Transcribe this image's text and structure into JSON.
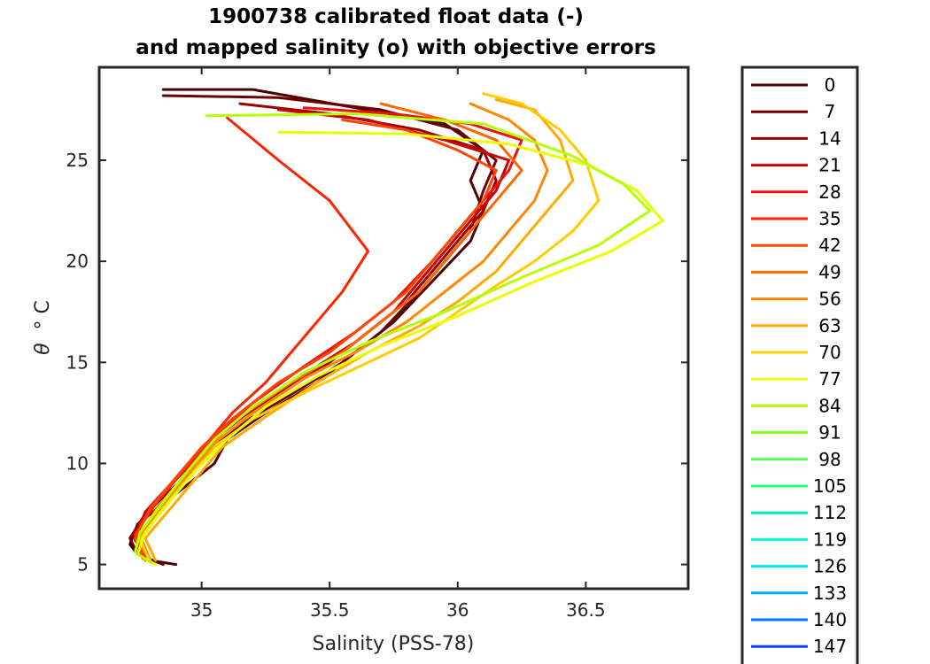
{
  "chart_data": {
    "type": "line",
    "title_line1": "1900738 calibrated float data (-)",
    "title_line2": "and mapped salinity (o) with objective errors",
    "xlabel": "Salinity (PSS-78)",
    "ylabel_symbol": "θ",
    "ylabel_unit": "° C",
    "xlim": [
      34.6,
      36.9
    ],
    "ylim": [
      3.8,
      29.6
    ],
    "xticks": [
      35,
      35.5,
      36,
      36.5
    ],
    "xtick_labels": [
      "35",
      "35.5",
      "36",
      "36.5"
    ],
    "yticks": [
      5,
      10,
      15,
      20,
      25
    ],
    "ytick_labels": [
      "5",
      "10",
      "15",
      "20",
      "25"
    ],
    "grid": false,
    "legend_position": "outside-right",
    "colormap": "jet-reversed (profile number)",
    "legend": [
      {
        "label": "0",
        "color": "#4d0000"
      },
      {
        "label": "7",
        "color": "#6b0000"
      },
      {
        "label": "14",
        "color": "#990000"
      },
      {
        "label": "21",
        "color": "#cc0000"
      },
      {
        "label": "28",
        "color": "#f01010"
      },
      {
        "label": "35",
        "color": "#ff2200"
      },
      {
        "label": "42",
        "color": "#ff4400"
      },
      {
        "label": "49",
        "color": "#ff6600"
      },
      {
        "label": "56",
        "color": "#ff8800"
      },
      {
        "label": "63",
        "color": "#ffaa00"
      },
      {
        "label": "70",
        "color": "#ffcc00"
      },
      {
        "label": "77",
        "color": "#e8ff00"
      },
      {
        "label": "84",
        "color": "#b5ff00"
      },
      {
        "label": "91",
        "color": "#80ff20"
      },
      {
        "label": "98",
        "color": "#50ff50"
      },
      {
        "label": "105",
        "color": "#20ff80"
      },
      {
        "label": "112",
        "color": "#00f0b0"
      },
      {
        "label": "119",
        "color": "#00ffd0"
      },
      {
        "label": "126",
        "color": "#00e5ff"
      },
      {
        "label": "133",
        "color": "#00aaff"
      },
      {
        "label": "140",
        "color": "#0077ff"
      },
      {
        "label": "147",
        "color": "#0044ff"
      }
    ],
    "series": [
      {
        "color": "#4d0000",
        "x": [
          34.85,
          35.2,
          35.6,
          35.95,
          36.1,
          36.05,
          36.1,
          36.05,
          35.9,
          35.75,
          35.6,
          35.45,
          35.25,
          35.1,
          35.05,
          34.95,
          34.85,
          34.75,
          34.72,
          34.75,
          34.8,
          34.9
        ],
        "y": [
          28.5,
          28.5,
          27.6,
          26.8,
          25.5,
          24.0,
          22.5,
          21.0,
          19.0,
          17.0,
          15.5,
          14.0,
          12.5,
          11.2,
          10.0,
          9.0,
          8.0,
          7.0,
          6.0,
          5.5,
          5.2,
          5.0
        ]
      },
      {
        "color": "#6b0000",
        "x": [
          34.85,
          35.3,
          35.7,
          36.0,
          36.15,
          36.1,
          36.05,
          35.95,
          35.85,
          35.7,
          35.55,
          35.4,
          35.2,
          35.05,
          34.98,
          34.88,
          34.78,
          34.72,
          34.75,
          34.85
        ],
        "y": [
          28.2,
          28.1,
          27.5,
          26.5,
          25.0,
          23.5,
          21.5,
          20.0,
          18.5,
          16.5,
          15.0,
          13.8,
          12.3,
          11.0,
          9.8,
          8.7,
          7.5,
          6.3,
          5.5,
          5.0
        ]
      },
      {
        "color": "#990000",
        "x": [
          35.15,
          35.5,
          35.85,
          36.1,
          36.15,
          36.1,
          36.0,
          35.9,
          35.8,
          35.65,
          35.5,
          35.3,
          35.1,
          35.0,
          34.9,
          34.8,
          34.73,
          34.78
        ],
        "y": [
          27.8,
          27.3,
          26.5,
          25.5,
          24.0,
          22.5,
          21.0,
          19.5,
          18.0,
          16.5,
          15.0,
          13.5,
          11.8,
          10.5,
          9.2,
          7.8,
          6.5,
          5.3
        ]
      },
      {
        "color": "#cc0000",
        "x": [
          35.3,
          35.65,
          35.95,
          36.2,
          36.15,
          36.05,
          35.95,
          35.85,
          35.75,
          35.6,
          35.45,
          35.25,
          35.08,
          34.98,
          34.88,
          34.78,
          34.74,
          34.8
        ],
        "y": [
          27.5,
          27.0,
          26.0,
          25.0,
          23.5,
          22.0,
          20.5,
          19.0,
          17.5,
          16.0,
          14.8,
          13.2,
          11.5,
          10.2,
          9.0,
          7.6,
          6.2,
          5.2
        ]
      },
      {
        "color": "#f01010",
        "x": [
          35.4,
          35.75,
          36.05,
          36.25,
          36.2,
          36.1,
          36.0,
          35.9,
          35.75,
          35.6,
          35.4,
          35.2,
          35.05,
          34.95,
          34.85,
          34.76,
          34.75
        ],
        "y": [
          27.6,
          27.3,
          26.8,
          26.0,
          24.5,
          23.0,
          21.5,
          20.0,
          18.0,
          16.5,
          14.8,
          13.0,
          11.3,
          10.0,
          8.5,
          7.0,
          5.8
        ]
      },
      {
        "color": "#ff2200",
        "x": [
          35.1,
          35.3,
          35.5,
          35.65,
          35.55,
          35.45,
          35.35,
          35.25,
          35.12,
          35.02,
          34.92,
          34.82,
          34.74,
          34.77
        ],
        "y": [
          27.1,
          25.0,
          23.0,
          20.5,
          18.5,
          17.0,
          15.5,
          14.0,
          12.5,
          11.0,
          9.5,
          8.0,
          6.5,
          5.3
        ]
      },
      {
        "color": "#ff4400",
        "x": [
          35.55,
          35.8,
          36.0,
          36.15,
          36.1,
          36.0,
          35.9,
          35.8,
          35.65,
          35.5,
          35.3,
          35.12,
          35.0,
          34.9,
          34.8,
          34.74,
          34.78
        ],
        "y": [
          27.0,
          26.5,
          25.5,
          24.5,
          23.0,
          21.5,
          20.0,
          18.5,
          17.0,
          15.5,
          14.0,
          12.2,
          10.8,
          9.3,
          7.8,
          6.3,
          5.2
        ]
      },
      {
        "color": "#ff6600",
        "x": [
          35.7,
          35.95,
          36.15,
          36.25,
          36.15,
          36.05,
          35.95,
          35.85,
          35.7,
          35.55,
          35.35,
          35.15,
          35.02,
          34.92,
          34.82,
          34.75,
          34.8
        ],
        "y": [
          27.8,
          27.0,
          26.0,
          24.5,
          23.0,
          21.5,
          20.0,
          18.5,
          17.0,
          15.5,
          14.0,
          12.3,
          10.8,
          9.2,
          7.7,
          6.2,
          5.1
        ]
      },
      {
        "color": "#ff8800",
        "x": [
          36.05,
          36.2,
          36.3,
          36.35,
          36.3,
          36.2,
          36.1,
          35.95,
          35.8,
          35.6,
          35.4,
          35.2,
          35.05,
          34.95,
          34.85,
          34.76,
          34.8
        ],
        "y": [
          27.8,
          27.0,
          26.0,
          24.5,
          23.0,
          21.5,
          20.0,
          18.5,
          17.0,
          15.5,
          14.2,
          12.5,
          11.0,
          9.5,
          8.0,
          6.4,
          5.2
        ]
      },
      {
        "color": "#ffaa00",
        "x": [
          36.15,
          36.3,
          36.4,
          36.45,
          36.35,
          36.25,
          36.15,
          36.0,
          35.85,
          35.65,
          35.45,
          35.25,
          35.08,
          34.98,
          34.88,
          34.78,
          34.82
        ],
        "y": [
          28.0,
          27.5,
          26.0,
          24.0,
          22.5,
          21.0,
          19.5,
          18.0,
          16.8,
          15.5,
          14.0,
          12.3,
          10.8,
          9.3,
          7.8,
          6.3,
          5.2
        ]
      },
      {
        "color": "#ffcc00",
        "x": [
          36.1,
          36.25,
          36.4,
          36.5,
          36.55,
          36.45,
          36.3,
          36.15,
          36.0,
          35.85,
          35.65,
          35.45,
          35.2,
          35.05,
          34.95,
          34.85,
          34.76,
          34.8
        ],
        "y": [
          28.3,
          27.8,
          26.5,
          25.0,
          23.0,
          21.5,
          20.0,
          18.8,
          17.5,
          16.2,
          15.0,
          13.8,
          12.2,
          10.8,
          9.3,
          7.8,
          6.2,
          5.1
        ]
      },
      {
        "color": "#e8ff00",
        "x": [
          35.3,
          35.8,
          36.2,
          36.5,
          36.7,
          36.8,
          36.6,
          36.3,
          36.0,
          35.7,
          35.45,
          35.25,
          35.1,
          34.98,
          34.88,
          34.78,
          34.75,
          34.82
        ],
        "y": [
          26.4,
          26.3,
          25.8,
          24.8,
          23.5,
          22.0,
          20.5,
          19.0,
          17.3,
          15.8,
          14.3,
          12.8,
          11.2,
          9.7,
          8.2,
          6.6,
          5.5,
          5.0
        ]
      },
      {
        "color": "#b5ff00",
        "x": [
          35.02,
          35.6,
          36.1,
          36.45,
          36.65,
          36.75,
          36.55,
          36.25,
          35.95,
          35.65,
          35.4,
          35.2,
          35.05,
          34.95,
          34.85,
          34.76,
          34.74,
          34.8
        ],
        "y": [
          27.2,
          27.3,
          26.8,
          25.2,
          23.8,
          22.5,
          20.8,
          19.2,
          17.5,
          16.0,
          14.5,
          12.8,
          11.2,
          9.7,
          8.1,
          6.6,
          5.6,
          5.1
        ]
      }
    ]
  }
}
